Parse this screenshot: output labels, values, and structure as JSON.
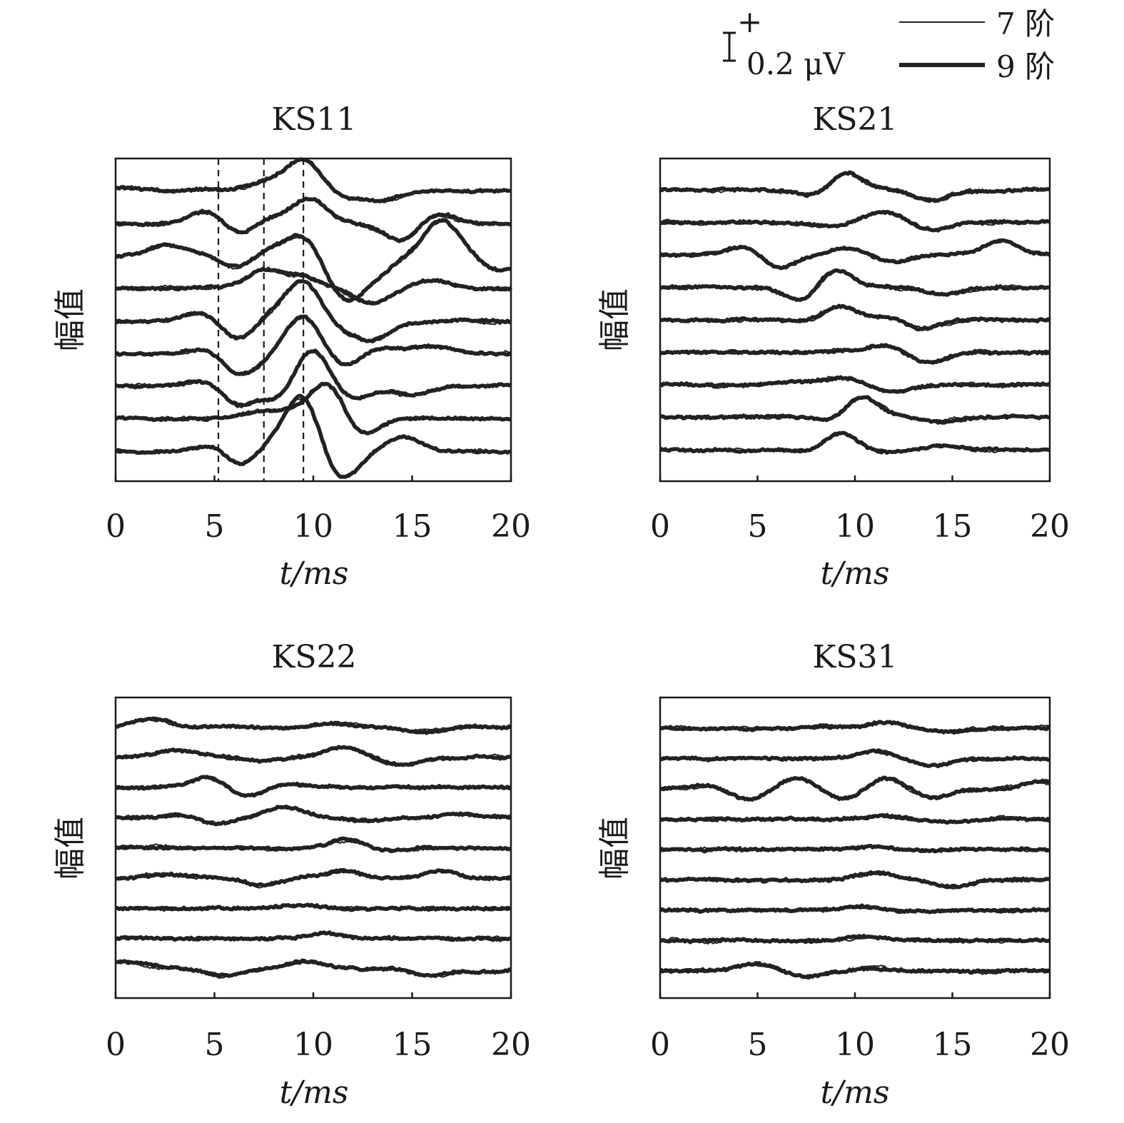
{
  "legend": {
    "scalebar_label": "0.2 μV",
    "scalebar_sign": "+",
    "series": [
      {
        "name": "7 阶",
        "style": "thin"
      },
      {
        "name": "9 阶",
        "style": "thick"
      }
    ]
  },
  "chart_data": [
    {
      "type": "line",
      "title": "KS11",
      "xlabel": "t/ms",
      "ylabel": "幅值",
      "xlim": [
        0,
        20
      ],
      "xticks": [
        "0",
        "5",
        "10",
        "15",
        "20"
      ],
      "traces": 9,
      "markers_ms": [
        5.2,
        7.5,
        9.5
      ],
      "peaks": [
        [
          [
            0.3,
            0.05
          ],
          [
            4.8,
            0.03
          ],
          [
            7.5,
            0.1
          ],
          [
            9.5,
            0.45
          ],
          [
            11.5,
            -0.1
          ],
          [
            13.5,
            -0.12
          ]
        ],
        [
          [
            4.8,
            0.22
          ],
          [
            6.2,
            -0.2
          ],
          [
            7.5,
            0.1
          ],
          [
            9.8,
            0.35
          ],
          [
            14.5,
            -0.25
          ],
          [
            16.2,
            0.15
          ]
        ],
        [
          [
            2.5,
            0.15
          ],
          [
            4.8,
            0.05
          ],
          [
            6.2,
            -0.2
          ],
          [
            7.5,
            0.1
          ],
          [
            9.5,
            0.3
          ],
          [
            11.5,
            -0.55
          ],
          [
            13.0,
            -0.25
          ],
          [
            16.5,
            0.5
          ],
          [
            19.5,
            -0.2
          ]
        ],
        [
          [
            4.8,
            0.02
          ],
          [
            7.5,
            0.25
          ],
          [
            9.5,
            0.15
          ],
          [
            13.0,
            -0.2
          ],
          [
            16.0,
            0.12
          ]
        ],
        [
          [
            4.5,
            0.15
          ],
          [
            6.2,
            -0.3
          ],
          [
            7.5,
            0.1
          ],
          [
            9.5,
            0.55
          ],
          [
            11.5,
            -0.1
          ],
          [
            13.0,
            -0.25
          ]
        ],
        [
          [
            4.8,
            0.1
          ],
          [
            6.2,
            -0.3
          ],
          [
            7.5,
            -0.05
          ],
          [
            9.5,
            0.55
          ],
          [
            11.5,
            -0.2
          ],
          [
            13.5,
            0.1
          ],
          [
            16.0,
            0.1
          ]
        ],
        [
          [
            4.8,
            0.1
          ],
          [
            6.2,
            -0.3
          ],
          [
            7.5,
            0.05
          ],
          [
            8.5,
            -0.3
          ],
          [
            9.8,
            0.6
          ],
          [
            12.0,
            -0.2
          ],
          [
            15.0,
            -0.12
          ]
        ],
        [
          [
            7.2,
            0.08
          ],
          [
            8.8,
            0.08
          ],
          [
            10.8,
            0.55
          ],
          [
            12.2,
            -0.3
          ],
          [
            16.0,
            0.0
          ]
        ],
        [
          [
            5.2,
            0.18
          ],
          [
            6.2,
            -0.3
          ],
          [
            7.5,
            0.1
          ],
          [
            9.5,
            0.8
          ],
          [
            11.3,
            -0.45
          ],
          [
            13.0,
            0.0
          ],
          [
            14.5,
            0.2
          ],
          [
            16.5,
            0.0
          ]
        ]
      ]
    },
    {
      "type": "line",
      "title": "KS21",
      "xlabel": "t/ms",
      "ylabel": "幅值",
      "xlim": [
        0,
        20
      ],
      "xticks": [
        "0",
        "5",
        "10",
        "15",
        "20"
      ],
      "traces": 9,
      "peaks": [
        [
          [
            8.5,
            -0.2
          ],
          [
            9.3,
            0.35
          ],
          [
            11.0,
            0.0
          ],
          [
            14.0,
            -0.15
          ]
        ],
        [
          [
            8.5,
            -0.05
          ],
          [
            11.5,
            0.15
          ],
          [
            14.0,
            -0.1
          ]
        ],
        [
          [
            4.5,
            0.15
          ],
          [
            6.0,
            -0.2
          ],
          [
            9.5,
            0.1
          ],
          [
            12.0,
            -0.1
          ],
          [
            15.0,
            0.0
          ],
          [
            17.5,
            0.2
          ]
        ],
        [
          [
            7.5,
            -0.25
          ],
          [
            8.8,
            0.3
          ],
          [
            12.0,
            0.0
          ],
          [
            14.5,
            -0.1
          ]
        ],
        [
          [
            8.3,
            -0.1
          ],
          [
            9.0,
            0.25
          ],
          [
            11.5,
            0.05
          ],
          [
            13.5,
            -0.12
          ]
        ],
        [
          [
            9.0,
            0.02
          ],
          [
            11.5,
            0.1
          ],
          [
            13.8,
            -0.15
          ]
        ],
        [
          [
            7.0,
            0.05
          ],
          [
            9.5,
            0.1
          ],
          [
            12.0,
            -0.1
          ]
        ],
        [
          [
            9.0,
            -0.08
          ],
          [
            10.3,
            0.3
          ],
          [
            14.5,
            -0.05
          ]
        ],
        [
          [
            8.5,
            -0.1
          ],
          [
            9.2,
            0.3
          ],
          [
            11.0,
            -0.05
          ],
          [
            14.5,
            0.05
          ],
          [
            17.0,
            0.0
          ]
        ]
      ]
    },
    {
      "type": "line",
      "title": "KS22",
      "xlabel": "t/ms",
      "ylabel": "幅值",
      "xlim": [
        0,
        20
      ],
      "xticks": [
        "0",
        "5",
        "10",
        "15",
        "20"
      ],
      "traces": 9,
      "peaks": [
        [
          [
            1.8,
            0.1
          ],
          [
            8.5,
            -0.02
          ],
          [
            11.0,
            0.05
          ],
          [
            15.5,
            -0.08
          ]
        ],
        [
          [
            3.0,
            0.1
          ],
          [
            7.5,
            -0.05
          ],
          [
            11.5,
            0.12
          ],
          [
            14.5,
            -0.12
          ]
        ],
        [
          [
            4.8,
            0.15
          ],
          [
            6.5,
            -0.15
          ],
          [
            8.5,
            0.05
          ],
          [
            12.5,
            0.0
          ]
        ],
        [
          [
            3.5,
            0.05
          ],
          [
            5.0,
            -0.1
          ],
          [
            8.5,
            0.15
          ],
          [
            13.0,
            -0.05
          ],
          [
            17.5,
            0.05
          ]
        ],
        [
          [
            9.0,
            -0.02
          ],
          [
            11.8,
            0.12
          ],
          [
            13.5,
            -0.05
          ]
        ],
        [
          [
            2.5,
            0.05
          ],
          [
            7.5,
            -0.1
          ],
          [
            11.5,
            0.1
          ],
          [
            16.5,
            0.1
          ],
          [
            19.0,
            0.0
          ]
        ],
        [
          [
            9.5,
            0.05
          ],
          [
            12.5,
            0.0
          ]
        ],
        [
          [
            10.5,
            0.08
          ],
          [
            13.0,
            0.0
          ]
        ],
        [
          [
            0.5,
            0.1
          ],
          [
            5.5,
            -0.1
          ],
          [
            9.5,
            0.1
          ],
          [
            16.0,
            -0.1
          ],
          [
            18.5,
            -0.05
          ]
        ]
      ]
    },
    {
      "type": "line",
      "title": "KS31",
      "xlabel": "t/ms",
      "ylabel": "幅值",
      "xlim": [
        0,
        20
      ],
      "xticks": [
        "0",
        "5",
        "10",
        "15",
        "20"
      ],
      "traces": 9,
      "peaks": [
        [
          [
            8.5,
            0.02
          ],
          [
            11.5,
            0.08
          ],
          [
            15.0,
            -0.05
          ]
        ],
        [
          [
            7.5,
            0.0
          ],
          [
            11.0,
            0.1
          ],
          [
            14.0,
            -0.1
          ]
        ],
        [
          [
            2.5,
            0.05
          ],
          [
            4.5,
            -0.15
          ],
          [
            7.0,
            0.15
          ],
          [
            9.5,
            -0.15
          ],
          [
            11.5,
            0.15
          ],
          [
            14.0,
            -0.12
          ],
          [
            19.5,
            0.1
          ]
        ],
        [
          [
            8.0,
            0.0
          ],
          [
            11.5,
            0.05
          ],
          [
            14.5,
            -0.05
          ]
        ],
        [
          [
            11.0,
            0.05
          ],
          [
            13.5,
            -0.02
          ]
        ],
        [
          [
            8.0,
            0.0
          ],
          [
            11.0,
            0.1
          ],
          [
            15.0,
            -0.1
          ]
        ],
        [
          [
            10.5,
            0.05
          ]
        ],
        [
          [
            10.5,
            0.05
          ],
          [
            13.0,
            0.0
          ]
        ],
        [
          [
            5.0,
            0.1
          ],
          [
            7.5,
            -0.08
          ],
          [
            11.0,
            0.05
          ],
          [
            16.0,
            0.0
          ]
        ]
      ]
    }
  ]
}
